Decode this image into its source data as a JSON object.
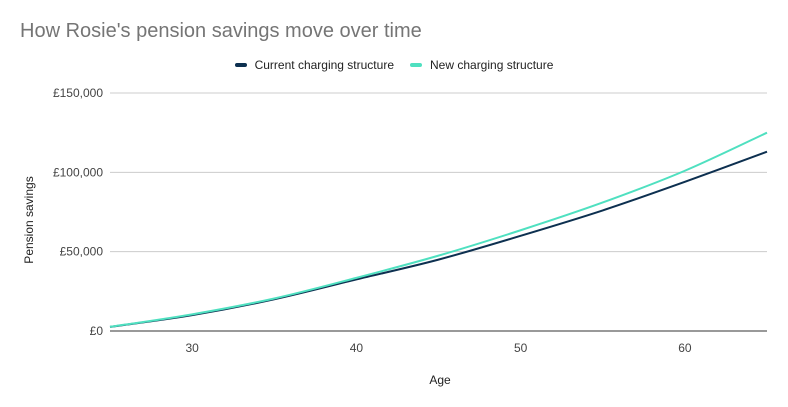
{
  "chart_data": {
    "type": "line",
    "title": "How Rosie's pension savings move over time",
    "xlabel": "Age",
    "ylabel": "Pension savings",
    "xlim": [
      25,
      65
    ],
    "ylim": [
      0,
      150000
    ],
    "x_ticks": [
      30,
      40,
      50,
      60
    ],
    "y_ticks": [
      {
        "value": 0,
        "label": "£0"
      },
      {
        "value": 50000,
        "label": "£50,000"
      },
      {
        "value": 100000,
        "label": "£100,000"
      },
      {
        "value": 150000,
        "label": "£150,000"
      }
    ],
    "grid": true,
    "legend_position": "top-center",
    "x": [
      25,
      30,
      35,
      40,
      45,
      50,
      55,
      60,
      65
    ],
    "series": [
      {
        "name": "Current charging structure",
        "color": "#0d3050",
        "values": [
          2600,
          10000,
          20000,
          32500,
          45000,
          60000,
          76000,
          94000,
          113000
        ]
      },
      {
        "name": "New charging structure",
        "color": "#4fe0c0",
        "values": [
          2600,
          10500,
          20500,
          33500,
          47500,
          63500,
          81000,
          101000,
          125000
        ]
      }
    ]
  }
}
